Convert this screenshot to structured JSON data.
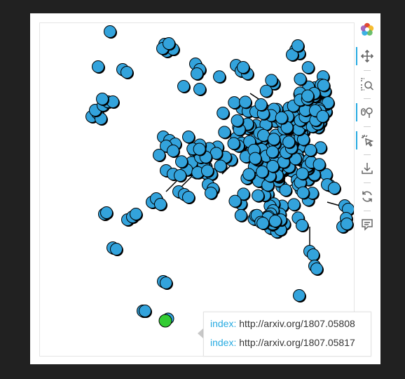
{
  "tooltip": {
    "rows": [
      {
        "label": "index:",
        "value": "http://arxiv.org/1807.05808"
      },
      {
        "label": "index:",
        "value": "http://arxiv.org/1807.05817"
      }
    ]
  },
  "colors": {
    "node_fill": "#33a3dc",
    "node_stroke": "#000000",
    "highlight_node": "#33cc33",
    "edge": "#000000",
    "toolbar_active": "#26aae1",
    "tooltip_label": "#26aae1"
  },
  "toolbar": {
    "tools": [
      {
        "icon": "bokeh-logo-icon",
        "active": false
      },
      {
        "icon": "pan-icon",
        "active": true
      },
      {
        "icon": "box-zoom-icon",
        "active": false
      },
      {
        "icon": "wheel-zoom-icon",
        "active": true
      },
      {
        "icon": "tap-icon",
        "active": true
      },
      {
        "icon": "save-icon",
        "active": false
      },
      {
        "icon": "reset-icon",
        "active": false
      },
      {
        "icon": "hover-icon",
        "active": false
      }
    ]
  }
}
